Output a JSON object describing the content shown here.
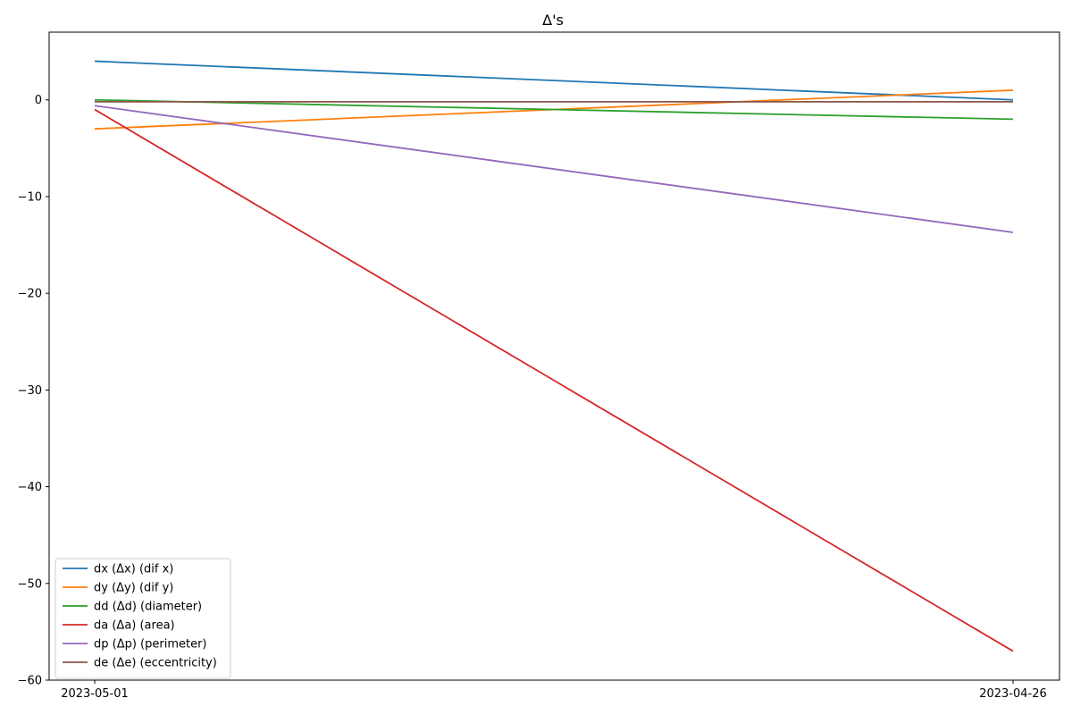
{
  "chart_data": {
    "type": "line",
    "title": "Δ's",
    "xlabel": "",
    "ylabel": "",
    "categories": [
      "2023-05-01",
      "2023-04-26"
    ],
    "ylim": [
      -60,
      7
    ],
    "yticks": [
      0,
      -10,
      -20,
      -30,
      -40,
      -50,
      -60
    ],
    "ytick_labels": [
      "0",
      "−10",
      "−20",
      "−30",
      "−40",
      "−50",
      "−60"
    ],
    "grid": false,
    "legend_position": "lower-left",
    "series": [
      {
        "name": "dx (Δx) (dif x)",
        "color": "#1f77b4",
        "values": [
          4.0,
          0.0
        ]
      },
      {
        "name": "dy (Δy) (dif y)",
        "color": "#ff7f0e",
        "values": [
          -3.0,
          1.0
        ]
      },
      {
        "name": "dd (Δd) (diameter)",
        "color": "#2ca02c",
        "values": [
          0.0,
          -2.0
        ]
      },
      {
        "name": "da (Δa) (area)",
        "color": "#d62728",
        "values": [
          -1.0,
          -57.0
        ]
      },
      {
        "name": "dp (Δp) (perimeter)",
        "color": "#9467bd",
        "values": [
          -0.6,
          -13.7
        ]
      },
      {
        "name": "de (Δe) (eccentricity)",
        "color": "#8c564b",
        "values": [
          -0.2,
          -0.2
        ]
      }
    ]
  }
}
